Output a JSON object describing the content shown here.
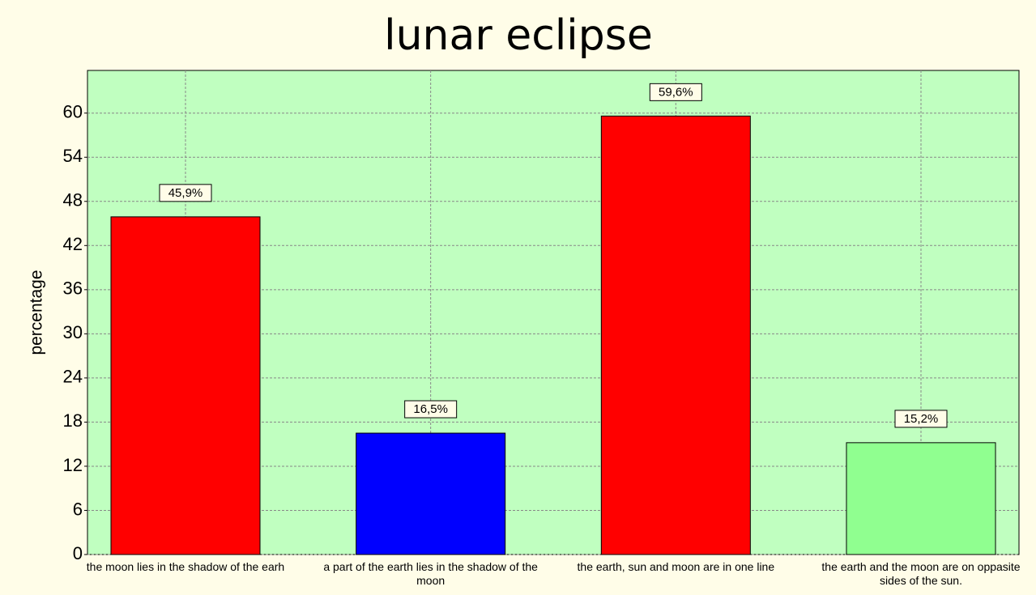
{
  "chart_data": {
    "type": "bar",
    "title": "lunar eclipse",
    "y_label": "percentage",
    "categories": [
      "the moon lies in the shadow of the earh",
      "a part of the earth lies in the shadow of the moon",
      "the earth, sun and moon are in one line",
      "the earth and the moon are on oppasite sides of the sun."
    ],
    "values": [
      45.9,
      16.5,
      59.6,
      15.2
    ],
    "value_labels": [
      "45,9%",
      "16,5%",
      "59,6%",
      "15,2%"
    ],
    "colors": [
      "#ff0000",
      "#0000ff",
      "#ff0000",
      "#90ff90"
    ],
    "ylim": [
      0,
      65.8
    ],
    "yticks": [
      0,
      6,
      12,
      18,
      24,
      30,
      36,
      42,
      48,
      54,
      60
    ],
    "grid": true
  }
}
